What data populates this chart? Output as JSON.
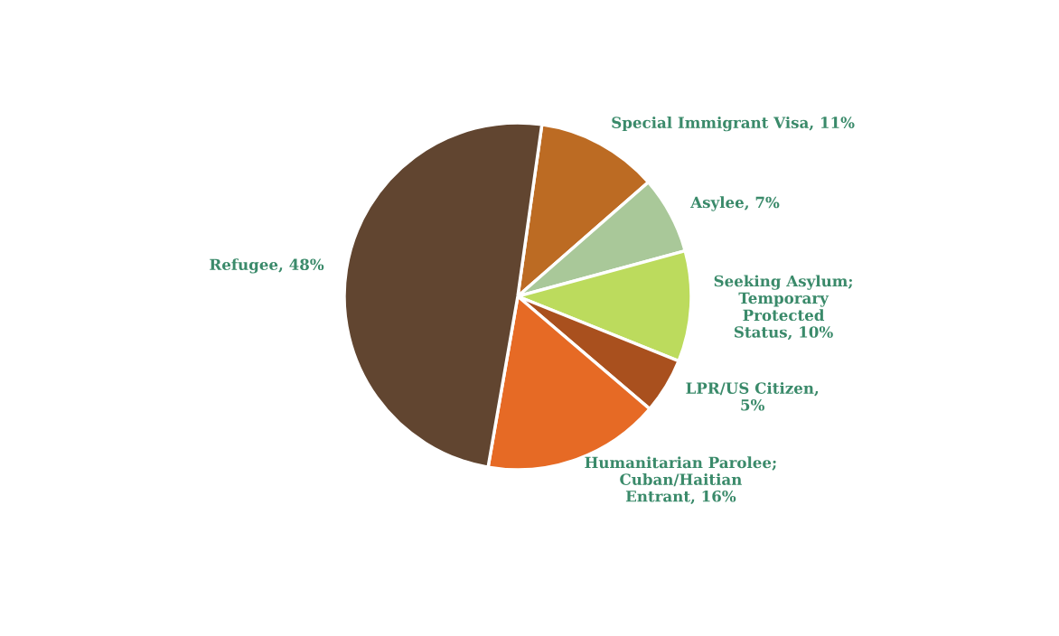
{
  "chart_data": {
    "type": "pie",
    "categories": [
      "Special Immigrant Visa, 11%",
      "Asylee, 7%",
      "Seeking Asylum;\nTemporary\nProtected\nStatus, 10%",
      "LPR/US Citizen,\n5%",
      "Humanitarian Parolee;\nCuban/Haitian\nEntrant, 16%",
      "Refugee, 48%"
    ],
    "values": [
      11,
      7,
      10,
      5,
      16,
      48
    ],
    "colors": [
      "#bc6b23",
      "#a9c899",
      "#bcdb5d",
      "#a9501e",
      "#e66a25",
      "#614530"
    ]
  }
}
